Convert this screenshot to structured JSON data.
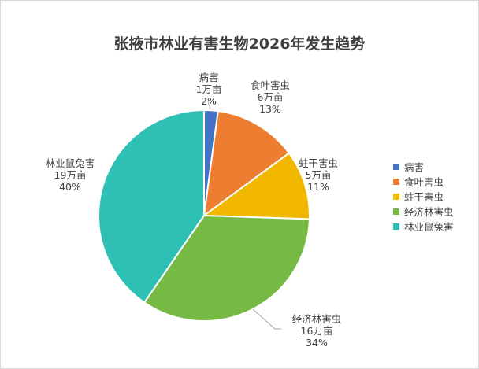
{
  "chart_data": {
    "type": "pie",
    "title": "张掖市林业有害生物2026年发生趋势",
    "unit": "万亩",
    "legend_position": "right",
    "slices": [
      {
        "name": "病害",
        "value": 1,
        "value_label": "1万亩",
        "percent_label": "2%",
        "color": "#4472C4"
      },
      {
        "name": "食叶害虫",
        "value": 6,
        "value_label": "6万亩",
        "percent_label": "13%",
        "color": "#ED7D31"
      },
      {
        "name": "蛀干害虫",
        "value": 5,
        "value_label": "5万亩",
        "percent_label": "11%",
        "color": "#F2B800"
      },
      {
        "name": "经济林害虫",
        "value": 16,
        "value_label": "16万亩",
        "percent_label": "34%",
        "color": "#76B943"
      },
      {
        "name": "林业鼠兔害",
        "value": 19,
        "value_label": "19万亩",
        "percent_label": "40%",
        "color": "#2EC0B4"
      }
    ]
  }
}
